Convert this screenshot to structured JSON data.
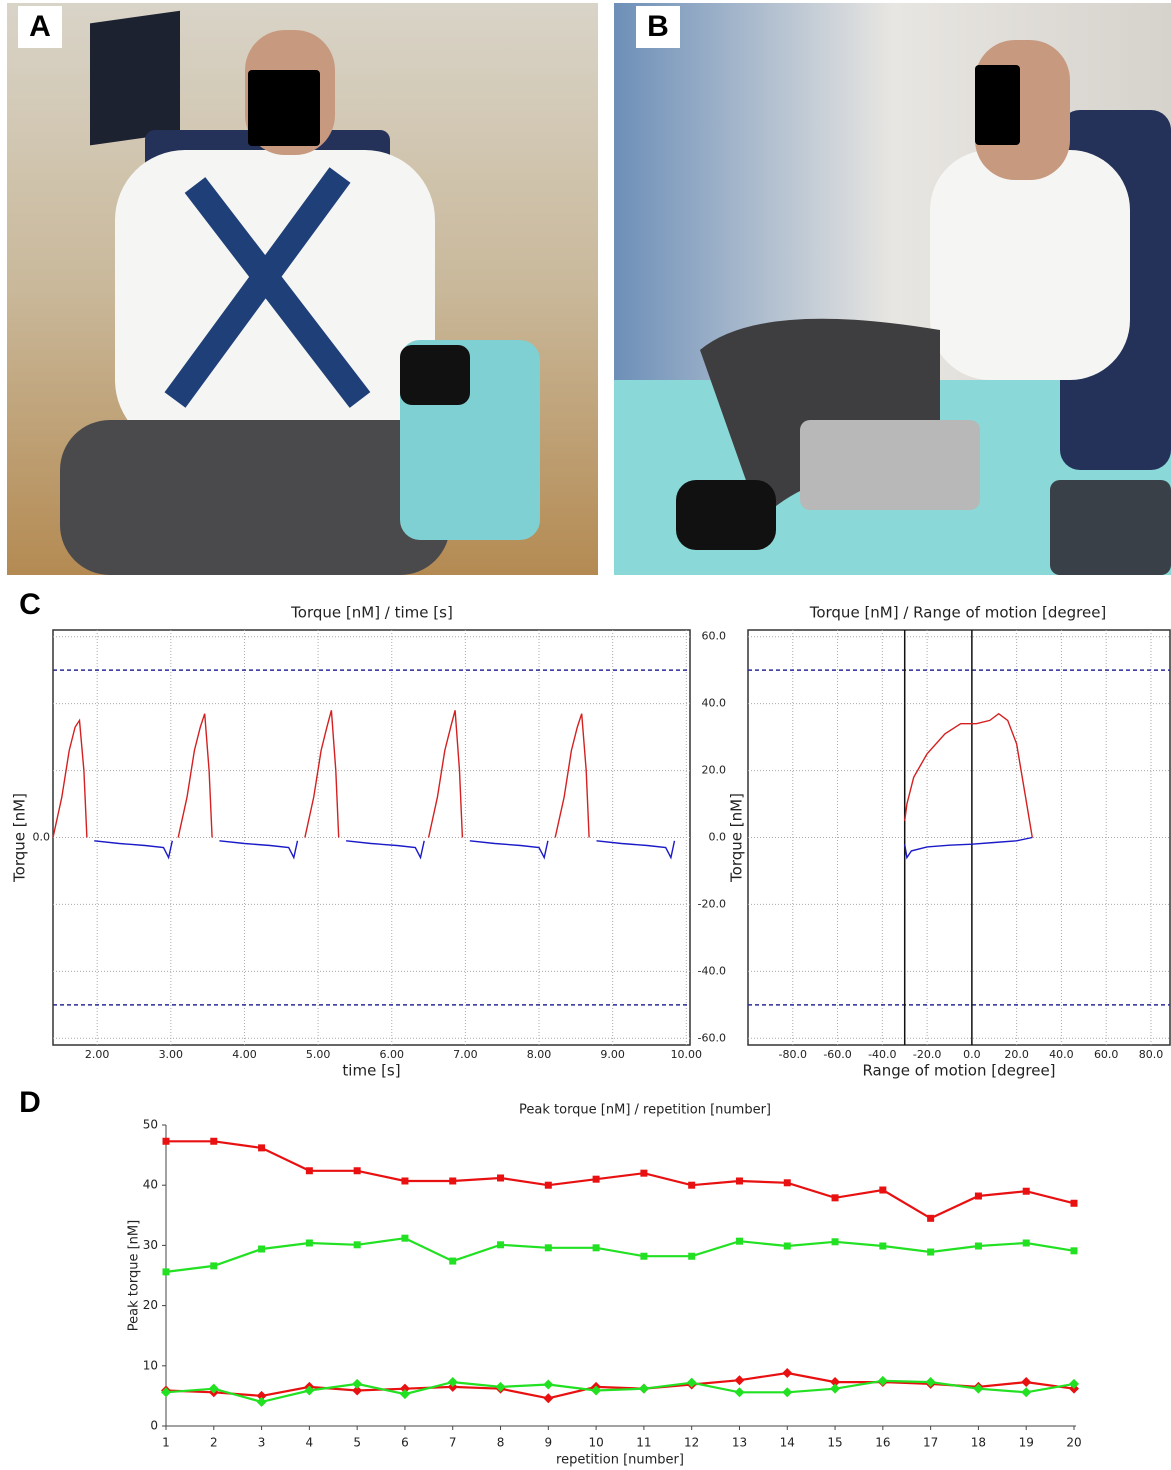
{
  "panel_labels": [
    "A",
    "B",
    "C",
    "D"
  ],
  "chart_data": [
    {
      "type": "line",
      "title": "Torque [nM] / time [s]",
      "x_label": "time [s]",
      "y_label": "Torque [nM]",
      "grid": true,
      "frame": true,
      "xlim": [
        1.4,
        10.05
      ],
      "ylim": [
        -62,
        62
      ],
      "xticks": [
        {
          "value": 2,
          "label": "2.00"
        },
        {
          "value": 3,
          "label": "3.00"
        },
        {
          "value": 4,
          "label": "4.00"
        },
        {
          "value": 5,
          "label": "5.00"
        },
        {
          "value": 6,
          "label": "6.00"
        },
        {
          "value": 7,
          "label": "7.00"
        },
        {
          "value": 8,
          "label": "8.00"
        },
        {
          "value": 9,
          "label": "9.00"
        },
        {
          "value": 10,
          "label": "10.00"
        }
      ],
      "yticks": [
        {
          "value": 0,
          "label": "0.0"
        }
      ],
      "ref_lines": [
        50,
        -50
      ],
      "x": [
        1.4,
        1.52,
        1.62,
        1.7,
        1.76,
        1.82,
        1.86,
        1.96,
        2.3,
        2.65,
        2.9,
        2.97,
        3.02,
        3.1,
        3.22,
        3.32,
        3.4,
        3.46,
        3.52,
        3.56,
        3.66,
        4.0,
        4.35,
        4.6,
        4.67,
        4.72,
        4.82,
        4.94,
        5.04,
        5.12,
        5.18,
        5.24,
        5.28,
        5.38,
        5.72,
        6.07,
        6.32,
        6.39,
        6.44,
        6.5,
        6.62,
        6.72,
        6.8,
        6.86,
        6.92,
        6.96,
        7.06,
        7.4,
        7.75,
        8.0,
        8.07,
        8.12,
        8.22,
        8.34,
        8.44,
        8.52,
        8.58,
        8.64,
        8.68,
        8.78,
        9.12,
        9.47,
        9.72,
        9.79,
        9.84
      ],
      "series": [
        {
          "color": "#d42020",
          "values": [
            0,
            12,
            26,
            33,
            35,
            20,
            0,
            null,
            null,
            null,
            null,
            null,
            null,
            0,
            12,
            26,
            33,
            37,
            20,
            0,
            null,
            null,
            null,
            null,
            null,
            null,
            0,
            12,
            26,
            33,
            38,
            20,
            0,
            null,
            null,
            null,
            null,
            null,
            null,
            0,
            12,
            26,
            33,
            38,
            20,
            0,
            null,
            null,
            null,
            null,
            null,
            null,
            0,
            12,
            26,
            33,
            37,
            20,
            0,
            null,
            null,
            null,
            null,
            null,
            null
          ]
        },
        {
          "color": "#1a1ac8",
          "values": [
            null,
            null,
            null,
            null,
            null,
            null,
            null,
            -1,
            -1.8,
            -2.4,
            -3,
            -6,
            -1,
            null,
            null,
            null,
            null,
            null,
            null,
            null,
            -1,
            -1.8,
            -2.4,
            -3,
            -6,
            -1,
            null,
            null,
            null,
            null,
            null,
            null,
            null,
            -1,
            -1.8,
            -2.4,
            -3,
            -6,
            -1,
            null,
            null,
            null,
            null,
            null,
            null,
            null,
            -1,
            -1.8,
            -2.4,
            -3,
            -6,
            -1,
            null,
            null,
            null,
            null,
            null,
            null,
            null,
            -1,
            -1.8,
            -2.4,
            -3,
            -6,
            -1
          ]
        }
      ]
    },
    {
      "type": "line",
      "title": "Torque [nM] / Range of motion [degree]",
      "x_label": "Range of motion [degree]",
      "y_label": "Torque [nM]",
      "grid": true,
      "frame": true,
      "xlim": [
        -100,
        88.5
      ],
      "ylim": [
        -62,
        62
      ],
      "xticks": [
        {
          "value": -80,
          "label": "-80.0"
        },
        {
          "value": -60,
          "label": "-60.0"
        },
        {
          "value": -40,
          "label": "-40.0"
        },
        {
          "value": -20,
          "label": "-20.0"
        },
        {
          "value": 0,
          "label": "0.0"
        },
        {
          "value": 20,
          "label": "20.0"
        },
        {
          "value": 40,
          "label": "40.0"
        },
        {
          "value": 60,
          "label": "60.0"
        },
        {
          "value": 80,
          "label": "80.0"
        }
      ],
      "yticks": [
        {
          "value": 60,
          "label": "60.0"
        },
        {
          "value": 40,
          "label": "40.0"
        },
        {
          "value": 20,
          "label": "20.0"
        },
        {
          "value": 0,
          "label": "0.0"
        },
        {
          "value": -20,
          "label": "-20.0"
        },
        {
          "value": -40,
          "label": "-40.0"
        },
        {
          "value": -60,
          "label": "-60.0"
        }
      ],
      "ref_lines": [
        50,
        -50
      ],
      "xref_lines": [
        -30,
        0
      ],
      "x": [
        -30,
        -29,
        -26,
        -20,
        -12,
        -5,
        2,
        8,
        12,
        16,
        20,
        24,
        27,
        27,
        20,
        10,
        0,
        -10,
        -20,
        -27,
        -29,
        -30
      ],
      "series": [
        {
          "color": "#d42020",
          "values": [
            5,
            10,
            18,
            25,
            31,
            34,
            34,
            35,
            37,
            35,
            28,
            12,
            0,
            null,
            null,
            null,
            null,
            null,
            null,
            null,
            null,
            null
          ]
        },
        {
          "color": "#1a1ac8",
          "values": [
            null,
            null,
            null,
            null,
            null,
            null,
            null,
            null,
            null,
            null,
            null,
            null,
            null,
            0,
            -1,
            -1.5,
            -2,
            -2.3,
            -2.8,
            -4,
            -6,
            -2
          ]
        }
      ]
    },
    {
      "type": "line",
      "title": "Peak torque [nM] / repetition [number]",
      "x_label": "repetition [number]",
      "y_label": "Peak torque [nM]",
      "grid": false,
      "frame": false,
      "xlim": [
        1,
        20
      ],
      "ylim": [
        0,
        50
      ],
      "xticks": [
        1,
        2,
        3,
        4,
        5,
        6,
        7,
        8,
        9,
        10,
        11,
        12,
        13,
        14,
        15,
        16,
        17,
        18,
        19,
        20
      ],
      "yticks": [
        0,
        10,
        20,
        30,
        40,
        50
      ],
      "x": [
        1,
        2,
        3,
        4,
        5,
        6,
        7,
        8,
        9,
        10,
        11,
        12,
        13,
        14,
        15,
        16,
        17,
        18,
        19,
        20
      ],
      "series": [
        {
          "color": "#e81010",
          "marker": "square",
          "values": [
            47.3,
            47.3,
            46.2,
            42.4,
            42.4,
            40.7,
            40.7,
            41.2,
            40.0,
            41.0,
            42.0,
            40.0,
            40.7,
            40.4,
            37.9,
            39.2,
            34.5,
            38.2,
            39.0,
            37.0
          ]
        },
        {
          "color": "#22e022",
          "marker": "square",
          "values": [
            25.6,
            26.6,
            29.4,
            30.4,
            30.1,
            31.2,
            27.4,
            30.1,
            29.6,
            29.6,
            28.2,
            28.2,
            30.7,
            29.9,
            30.6,
            29.9,
            28.9,
            29.9,
            30.4,
            29.1
          ]
        },
        {
          "color": "#e81010",
          "marker": "diamond",
          "values": [
            5.9,
            5.6,
            5.0,
            6.5,
            5.9,
            6.2,
            6.5,
            6.2,
            4.6,
            6.5,
            6.2,
            6.9,
            7.6,
            8.8,
            7.3,
            7.3,
            7.0,
            6.5,
            7.3,
            6.2
          ]
        },
        {
          "color": "#22e022",
          "marker": "diamond",
          "values": [
            5.6,
            6.2,
            4.0,
            5.9,
            7.0,
            5.3,
            7.3,
            6.5,
            6.9,
            5.9,
            6.2,
            7.2,
            5.6,
            5.6,
            6.2,
            7.5,
            7.3,
            6.2,
            5.6,
            7.0
          ]
        }
      ]
    }
  ]
}
